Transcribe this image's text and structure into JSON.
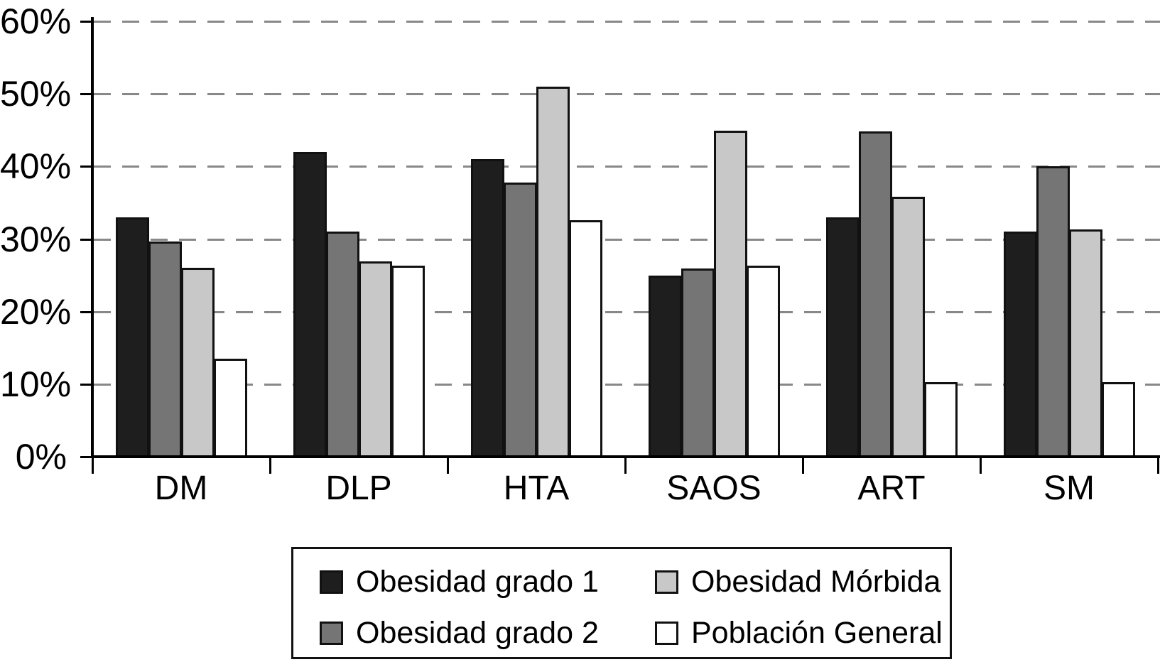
{
  "chart_data": {
    "type": "bar",
    "title": "",
    "xlabel": "",
    "ylabel": "",
    "categories": [
      "DM",
      "DLP",
      "HTA",
      "SAOS",
      "ART",
      "SM"
    ],
    "series": [
      {
        "name": "Obesidad grado 1",
        "color": "#1e1e1e",
        "values": [
          33,
          42,
          41,
          25,
          33,
          31
        ]
      },
      {
        "name": "Obesidad grado 2",
        "color": "#757575",
        "values": [
          29.7,
          31,
          37.8,
          25.9,
          44.8,
          40
        ]
      },
      {
        "name": "Obesidad Mórbida",
        "color": "#c8c8c8",
        "values": [
          26,
          26.9,
          51,
          44.9,
          35.8,
          31.3
        ]
      },
      {
        "name": "Población General",
        "color": "#ffffff",
        "values": [
          13.5,
          26.3,
          32.6,
          26.3,
          10.3,
          10.3
        ]
      }
    ],
    "ylim": [
      0,
      60
    ],
    "ytick_step": 10,
    "ytick_labels": [
      "0%",
      "10%",
      "20%",
      "30%",
      "40%",
      "50%",
      "60%"
    ],
    "grid": "horizontal-dashed",
    "legend_position": "bottom-boxed-2x2",
    "colors": {
      "axis": "#000000",
      "grid": "#888888",
      "bar_outline": "#111111",
      "background": "#ffffff"
    }
  }
}
